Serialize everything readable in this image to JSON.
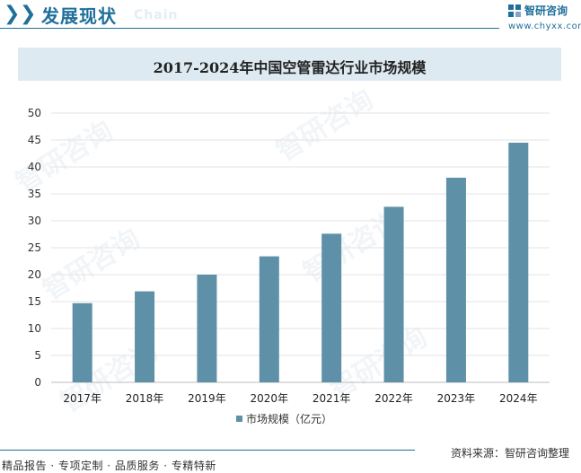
{
  "header": {
    "section_title": "发展现状",
    "section_subtitle": "Chain",
    "brand_name": "智研咨询",
    "brand_url": "www.chyxx.com"
  },
  "chart_data": {
    "type": "bar",
    "title": "2017-2024年中国空管雷达行业市场规模",
    "categories": [
      "2017年",
      "2018年",
      "2019年",
      "2020年",
      "2021年",
      "2022年",
      "2023年",
      "2024年"
    ],
    "series": [
      {
        "name": "市场规模（亿元）",
        "values": [
          14.7,
          16.9,
          20.0,
          23.4,
          27.6,
          32.6,
          38.0,
          44.5
        ]
      }
    ],
    "xlabel": "",
    "ylabel": "",
    "ylim": [
      0,
      50
    ],
    "yticks": [
      0,
      5,
      10,
      15,
      20,
      25,
      30,
      35,
      40,
      45,
      50
    ],
    "grid": true,
    "legend": "bottom",
    "bar_color": "#5e91a8"
  },
  "footer": {
    "services": "精品报告 · 专项定制 · 品质服务 · 专精特新",
    "source": "资料来源：智研咨询整理"
  },
  "watermark": "智研咨询"
}
